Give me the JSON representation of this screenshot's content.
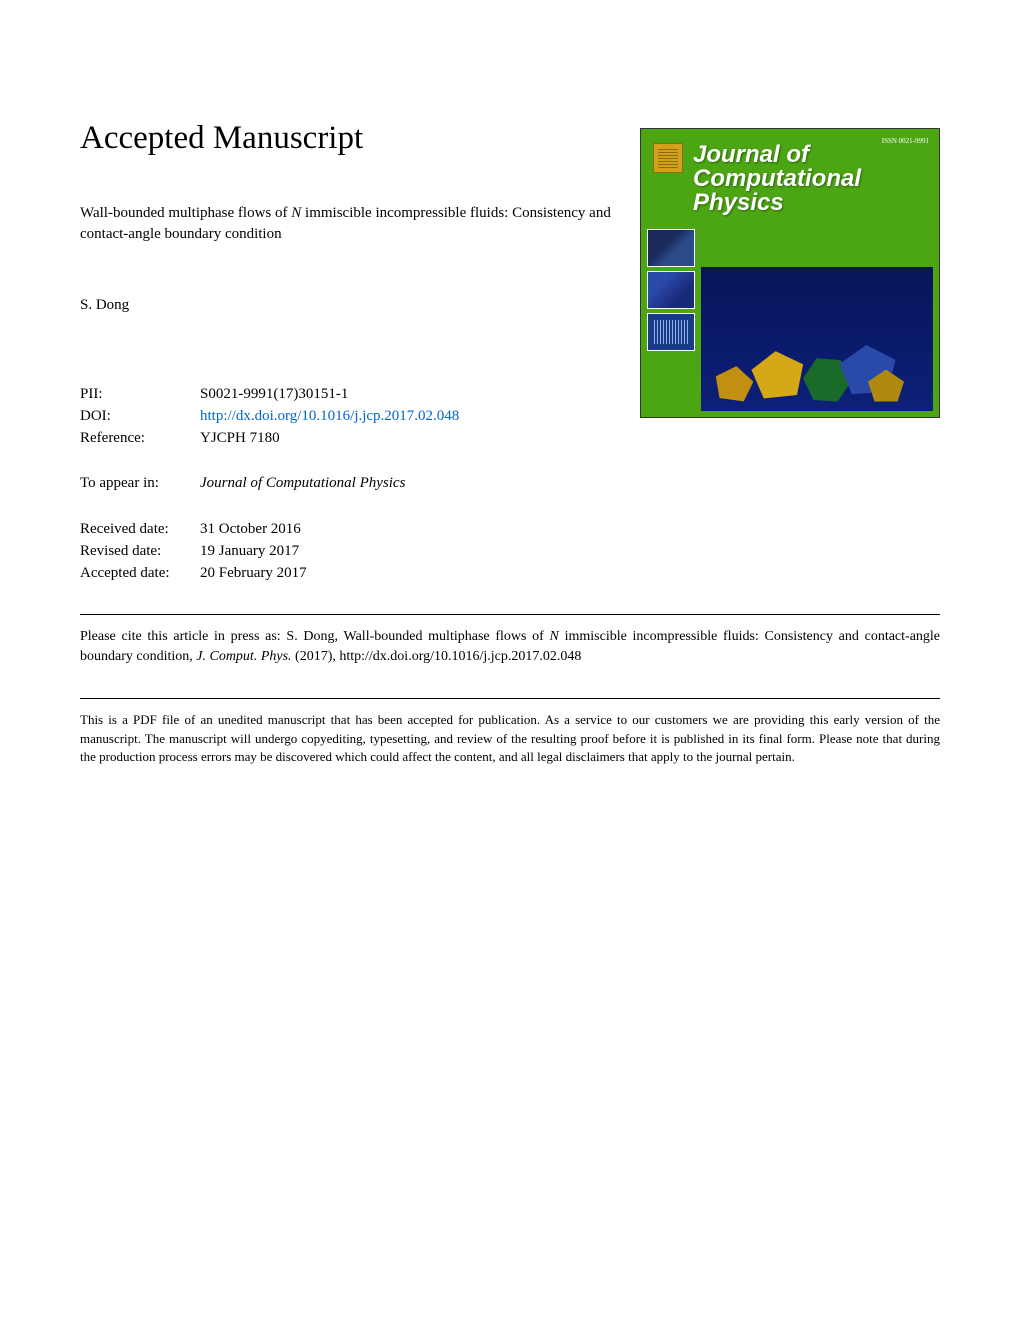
{
  "heading": "Accepted Manuscript",
  "title_line1": "Wall-bounded multiphase flows of ",
  "title_var": "N",
  "title_line1b": " immiscible incompressible fluids: Consistency and",
  "title_line2": "contact-angle boundary condition",
  "author": "S. Dong",
  "meta": {
    "pii_label": "PII:",
    "pii_value": "S0021-9991(17)30151-1",
    "doi_label": "DOI:",
    "doi_value": "http://dx.doi.org/10.1016/j.jcp.2017.02.048",
    "ref_label": "Reference:",
    "ref_value": "YJCPH 7180",
    "appear_label": "To appear in:",
    "appear_value": "Journal of Computational Physics",
    "received_label": "Received date:",
    "received_value": "31 October 2016",
    "revised_label": "Revised date:",
    "revised_value": "19 January 2017",
    "accepted_label": "Accepted date:",
    "accepted_value": "20 February 2017"
  },
  "citation_prefix": "Please cite this article in press as: S. Dong, Wall-bounded multiphase flows of ",
  "citation_var": "N",
  "citation_mid": " immiscible incompressible fluids: Consistency and contact-angle boundary condition, ",
  "citation_journal": "J. Comput. Phys.",
  "citation_suffix": " (2017), http://dx.doi.org/10.1016/j.jcp.2017.02.048",
  "disclaimer": "This is a PDF file of an unedited manuscript that has been accepted for publication. As a service to our customers we are providing this early version of the manuscript. The manuscript will undergo copyediting, typesetting, and review of the resulting proof before it is published in its final form. Please note that during the production process errors may be discovered which could affect the content, and all legal disclaimers that apply to the journal pertain.",
  "cover": {
    "title_line1": "Journal of",
    "title_line2": "Computational",
    "title_line3": "Physics",
    "issn": "ISSN 0021-9991",
    "bg_color": "#4ca614",
    "main_bg": "#071558"
  },
  "colors": {
    "link": "#0066cc",
    "text": "#000000",
    "page_bg": "#ffffff"
  }
}
